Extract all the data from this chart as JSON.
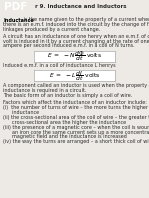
{
  "bg_color": "#edeae5",
  "pdf_badge_color": "#1a1a1a",
  "pdf_badge_text": "PDF",
  "pdf_badge_text_color": "#ffffff",
  "header_text": "r 9. Inductance and Inductors",
  "header_color": "#2c2c2c",
  "formula1_label": "E = -N \\frac{d\\Phi}{dt} \\mathrm{volts}",
  "formula2_label": "E = -L \\frac{dI}{dt} \\mathrm{volts}",
  "induced_text": "Induced e.m.f. in a coil of inductance L henrys",
  "body_text_color": "#2c2c2c",
  "bold_text_color": "#000000"
}
